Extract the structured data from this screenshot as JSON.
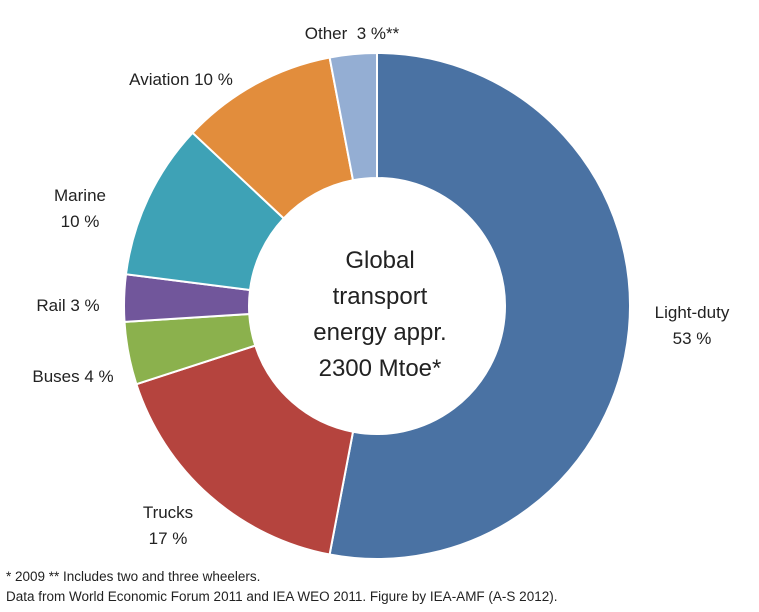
{
  "chart_data": {
    "type": "pie",
    "center_text": [
      "Global",
      "transport",
      "energy appr.",
      "2300 Mtoe*"
    ],
    "slices": [
      {
        "category": "Light-duty",
        "value": 53,
        "label_lines": [
          "Light-duty",
          "53 %"
        ],
        "color": "#4a72a3"
      },
      {
        "category": "Trucks",
        "value": 17,
        "label_lines": [
          "Trucks",
          "17 %"
        ],
        "color": "#b5443e"
      },
      {
        "category": "Buses",
        "value": 4,
        "label_lines": [
          "Buses 4 %"
        ],
        "color": "#8bb14d"
      },
      {
        "category": "Rail",
        "value": 3,
        "label_lines": [
          "Rail 3 %"
        ],
        "color": "#71569b"
      },
      {
        "category": "Marine",
        "value": 10,
        "label_lines": [
          "Marine",
          "10 %"
        ],
        "color": "#3ea2b6"
      },
      {
        "category": "Aviation",
        "value": 10,
        "label_lines": [
          "Aviation 10 %"
        ],
        "color": "#e28d3c"
      },
      {
        "category": "Other",
        "value": 3,
        "label_lines": [
          "Other  3 %**"
        ],
        "color": "#94aed3"
      }
    ]
  },
  "footnotes": {
    "line1": "* 2009   ** Includes two and three wheelers.",
    "line2": "Data from World Economic Forum 2011 and IEA WEO 2011.  Figure  by IEA-AMF (A-S 2012)."
  }
}
